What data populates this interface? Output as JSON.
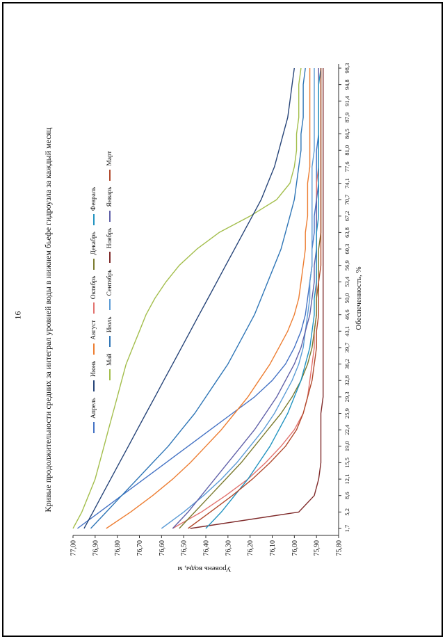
{
  "page": {
    "number": "16"
  },
  "chart_data": {
    "type": "line",
    "title": "Кривые продолжительности средних за интеграл уровней воды в нижнем бьефе гидроузла за каждый месяц",
    "xlabel": "Обеспеченность, %",
    "ylabel": "Уровень воды, м",
    "ylim": [
      75.8,
      77.0
    ],
    "grid": false,
    "legend_position": "top, two rows, inside plot area",
    "page_rotation": "landscape chart rotated 90 degrees counterclockwise on portrait page",
    "x": [
      1.7,
      5.2,
      8.6,
      12.1,
      15.5,
      19.0,
      22.4,
      25.9,
      29.3,
      32.8,
      36.2,
      39.7,
      43.1,
      46.6,
      50.0,
      53.4,
      56.9,
      60.3,
      63.8,
      67.2,
      70.7,
      74.1,
      77.6,
      81.0,
      84.5,
      87.9,
      91.4,
      94.8,
      98.3
    ],
    "x_tick_labels": [
      "1,7",
      "5,2",
      "8,6",
      "12,1",
      "15,5",
      "19,0",
      "22,4",
      "25,9",
      "29,3",
      "32,8",
      "36,2",
      "39,7",
      "43,1",
      "46,6",
      "50,0",
      "53,4",
      "56,9",
      "60,3",
      "63,8",
      "67,2",
      "70,7",
      "74,1",
      "77,6",
      "81,0",
      "84,5",
      "87,9",
      "91,4",
      "94,8",
      "98,3"
    ],
    "y_tick_labels": [
      "77,00",
      "76,90",
      "76,80",
      "76,70",
      "76,60",
      "76,50",
      "76,40",
      "76,30",
      "76,20",
      "76,10",
      "76,00",
      "75,90",
      "75,80"
    ],
    "legend_rows": [
      [
        "Апрель",
        "Июнь",
        "Август",
        "Октябрь",
        "Декабрь",
        "Февраль"
      ],
      [
        "Май",
        "Июль",
        "Сентябрь",
        "Ноябрь",
        "Январь",
        "Март"
      ]
    ],
    "series": [
      {
        "name": "Апрель",
        "color": "#4472C4",
        "values": [
          76.98,
          76.88,
          76.78,
          76.68,
          76.58,
          76.48,
          76.38,
          76.28,
          76.18,
          76.1,
          76.04,
          76.0,
          75.97,
          75.95,
          75.94,
          75.93,
          75.92,
          75.92,
          75.91,
          75.91,
          75.9,
          75.9,
          75.9,
          75.9,
          75.89,
          75.89,
          75.89,
          75.89,
          75.89
        ]
      },
      {
        "name": "Май",
        "color": "#A3BE4C",
        "values": [
          77.0,
          76.96,
          76.93,
          76.9,
          76.88,
          76.86,
          76.84,
          76.82,
          76.8,
          76.78,
          76.76,
          76.73,
          76.7,
          76.67,
          76.63,
          76.58,
          76.52,
          76.44,
          76.34,
          76.2,
          76.08,
          76.02,
          76.0,
          75.99,
          75.99,
          75.98,
          75.98,
          75.98,
          75.97
        ]
      },
      {
        "name": "Июнь",
        "color": "#264478",
        "values": [
          76.95,
          76.91,
          76.87,
          76.83,
          76.79,
          76.75,
          76.71,
          76.67,
          76.63,
          76.59,
          76.55,
          76.51,
          76.47,
          76.43,
          76.39,
          76.35,
          76.31,
          76.27,
          76.23,
          76.19,
          76.15,
          76.12,
          76.09,
          76.07,
          76.05,
          76.03,
          76.02,
          76.01,
          76.0
        ]
      },
      {
        "name": "Июль",
        "color": "#2E75B6",
        "values": [
          76.92,
          76.85,
          76.78,
          76.71,
          76.64,
          76.57,
          76.51,
          76.45,
          76.4,
          76.35,
          76.3,
          76.26,
          76.22,
          76.18,
          76.15,
          76.12,
          76.09,
          76.06,
          76.04,
          76.02,
          76.0,
          75.99,
          75.98,
          75.97,
          75.97,
          75.96,
          75.96,
          75.96,
          75.95
        ]
      },
      {
        "name": "Август",
        "color": "#ED7D31",
        "values": [
          76.85,
          76.74,
          76.64,
          76.55,
          76.47,
          76.4,
          76.33,
          76.27,
          76.21,
          76.16,
          76.11,
          76.07,
          76.03,
          76.0,
          75.98,
          75.97,
          75.96,
          75.95,
          75.95,
          75.94,
          75.94,
          75.94,
          75.93,
          75.93,
          75.93,
          75.93,
          75.93,
          75.93,
          75.93
        ]
      },
      {
        "name": "Сентябрь",
        "color": "#5B9BD5",
        "values": [
          76.6,
          76.5,
          76.41,
          76.33,
          76.26,
          76.2,
          76.14,
          76.09,
          76.05,
          76.01,
          75.98,
          75.96,
          75.95,
          75.94,
          75.93,
          75.93,
          75.92,
          75.92,
          75.92,
          75.92,
          75.92,
          75.92,
          75.92,
          75.91,
          75.91,
          75.91,
          75.91,
          75.91,
          75.91
        ]
      },
      {
        "name": "Октябрь",
        "color": "#E2726E",
        "values": [
          76.55,
          76.42,
          76.31,
          76.21,
          76.13,
          76.06,
          76.0,
          75.96,
          75.94,
          75.93,
          75.92,
          75.91,
          75.91,
          75.9,
          75.9,
          75.9,
          75.9,
          75.9,
          75.9,
          75.9,
          75.9,
          75.9,
          75.89,
          75.89,
          75.89,
          75.89,
          75.89,
          75.89,
          75.89
        ]
      },
      {
        "name": "Ноябрь",
        "color": "#7F2A2A",
        "values": [
          76.47,
          75.98,
          75.91,
          75.89,
          75.88,
          75.88,
          75.88,
          75.88,
          75.87,
          75.87,
          75.87,
          75.87,
          75.87,
          75.87,
          75.87,
          75.87,
          75.87,
          75.87,
          75.87,
          75.87,
          75.87,
          75.87,
          75.87,
          75.87,
          75.87,
          75.87,
          75.87,
          75.87,
          75.87
        ]
      },
      {
        "name": "Декабрь",
        "color": "#7A7A2E",
        "values": [
          76.52,
          76.45,
          76.38,
          76.31,
          76.24,
          76.18,
          76.12,
          76.06,
          76.01,
          75.97,
          75.94,
          75.92,
          75.91,
          75.9,
          75.9,
          75.89,
          75.89,
          75.89,
          75.88,
          75.88,
          75.88,
          75.88,
          75.88,
          75.88,
          75.88,
          75.88,
          75.88,
          75.88,
          75.88
        ]
      },
      {
        "name": "Январь",
        "color": "#6060A8",
        "values": [
          76.55,
          76.48,
          76.42,
          76.36,
          76.3,
          76.24,
          76.18,
          76.13,
          76.08,
          76.04,
          76.0,
          75.97,
          75.95,
          75.93,
          75.92,
          75.91,
          75.91,
          75.9,
          75.9,
          75.9,
          75.9,
          75.89,
          75.89,
          75.89,
          75.89,
          75.89,
          75.89,
          75.89,
          75.89
        ]
      },
      {
        "name": "Февраль",
        "color": "#2193C0",
        "values": [
          76.4,
          76.33,
          76.27,
          76.21,
          76.16,
          76.11,
          76.07,
          76.03,
          76.0,
          75.97,
          75.95,
          75.93,
          75.92,
          75.91,
          75.91,
          75.9,
          75.9,
          75.9,
          75.9,
          75.89,
          75.89,
          75.89,
          75.89,
          75.89,
          75.89,
          75.89,
          75.89,
          75.89,
          75.88
        ]
      },
      {
        "name": "Март",
        "color": "#B1492C",
        "values": [
          76.48,
          76.38,
          76.28,
          76.19,
          76.11,
          76.04,
          75.99,
          75.96,
          75.94,
          75.92,
          75.91,
          75.9,
          75.9,
          75.89,
          75.89,
          75.89,
          75.88,
          75.88,
          75.88,
          75.88,
          75.88,
          75.88,
          75.88,
          75.88,
          75.88,
          75.88,
          75.88,
          75.88,
          75.88
        ]
      }
    ]
  }
}
